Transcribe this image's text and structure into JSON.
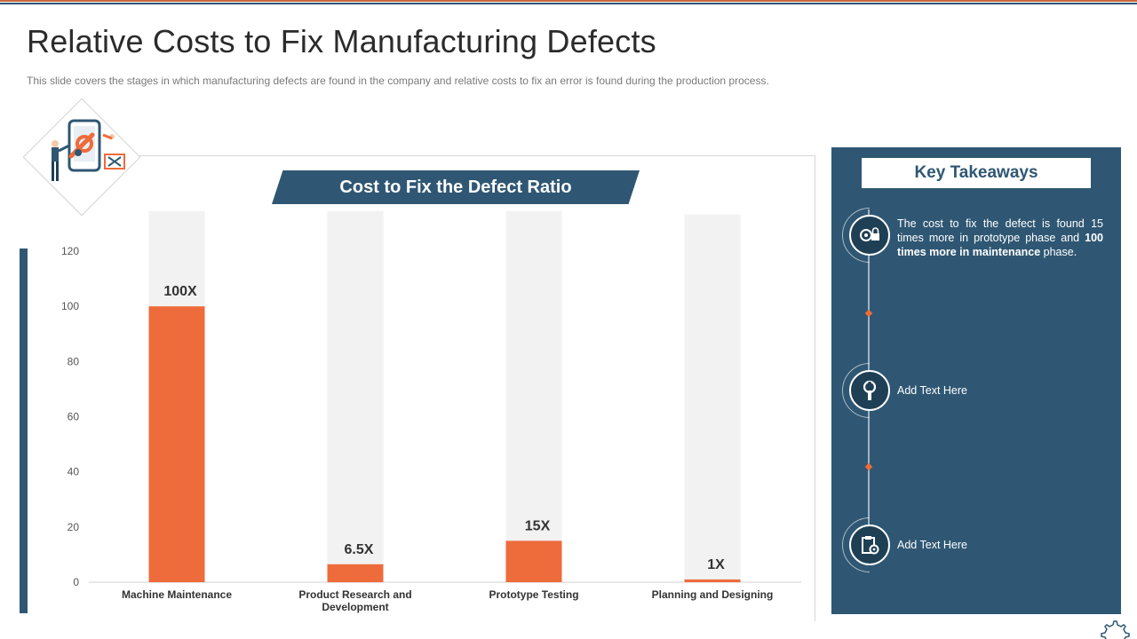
{
  "page": {
    "title": "Relative Costs to Fix Manufacturing Defects",
    "subtitle": "This slide covers the stages in which manufacturing defects are found in the company and relative costs to fix an error is found during the production process.",
    "colors": {
      "accent": "#ee6b3b",
      "brand": "#2f5773",
      "track": "#f2f2f2"
    }
  },
  "chart_data": {
    "type": "bar",
    "title": "Cost to Fix the Defect Ratio",
    "categories": [
      "Machine Maintenance",
      "Product Research and Development",
      "Prototype Testing",
      "Planning and Designing"
    ],
    "category_lines": [
      [
        "Machine Maintenance"
      ],
      [
        "Product Research and",
        "Development"
      ],
      [
        "Prototype Testing"
      ],
      [
        "Planning and Designing"
      ]
    ],
    "values": [
      100,
      6.5,
      15,
      1
    ],
    "data_labels": [
      "100X",
      "6.5X",
      "15X",
      "1X"
    ],
    "ylim": [
      0,
      120
    ],
    "yticks": [
      0,
      20,
      40,
      60,
      80,
      100,
      120
    ],
    "grid": false,
    "legend": "none",
    "background_track_max": 132
  },
  "takeaways": {
    "title": "Key Takeaways",
    "items": [
      {
        "icon": "gear-lock-icon",
        "segments": [
          {
            "text": "The cost to fix the defect is found 15 times more in prototype phase and ",
            "bold": false
          },
          {
            "text": "100 times more in maintenance",
            "bold": true
          },
          {
            "text": " phase.",
            "bold": false
          }
        ]
      },
      {
        "icon": "wrench-icon",
        "segments": [
          {
            "text": "Add Text Here",
            "bold": false
          }
        ]
      },
      {
        "icon": "clipboard-gear-icon",
        "segments": [
          {
            "text": "Add Text Here",
            "bold": false
          }
        ]
      }
    ]
  }
}
